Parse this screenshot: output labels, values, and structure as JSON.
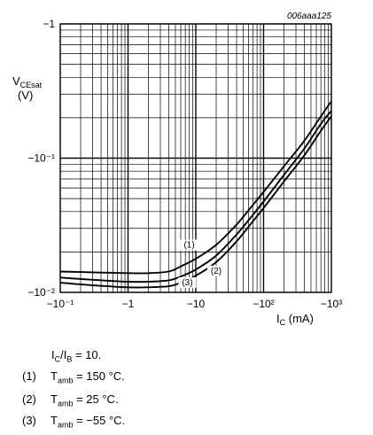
{
  "chart_data": {
    "type": "line",
    "figure_id": "006aaa125",
    "x_scale": "log",
    "y_scale": "log",
    "xlim": [
      -0.1,
      -1000
    ],
    "ylim": [
      -0.01,
      -1
    ],
    "x_ticks": [
      {
        "value": -0.1,
        "label": "−10⁻¹"
      },
      {
        "value": -1,
        "label": "−1"
      },
      {
        "value": -10,
        "label": "−10"
      },
      {
        "value": -100,
        "label": "−10²"
      },
      {
        "value": -1000,
        "label": "−10³"
      }
    ],
    "y_ticks": [
      {
        "value": -1,
        "label": "−1"
      },
      {
        "value": -0.1,
        "label": "−10⁻¹"
      },
      {
        "value": -0.01,
        "label": "−10⁻²"
      }
    ],
    "ylabel_main": "V",
    "ylabel_sub": "CEsat",
    "ylabel_unit": "(V)",
    "xlabel_main": "I",
    "xlabel_sub": "C",
    "xlabel_unit": " (mA)",
    "grid": true,
    "series": [
      {
        "name": "(1)",
        "x": [
          -0.1,
          -0.3,
          -1,
          -2,
          -4,
          -6,
          -10,
          -20,
          -40,
          -70,
          -100,
          -200,
          -400,
          -700,
          -1000
        ],
        "y": [
          -0.0143,
          -0.0141,
          -0.0139,
          -0.0139,
          -0.0143,
          -0.0156,
          -0.0178,
          -0.0226,
          -0.032,
          -0.045,
          -0.056,
          -0.087,
          -0.135,
          -0.205,
          -0.265
        ]
      },
      {
        "name": "(2)",
        "x": [
          -0.1,
          -0.3,
          -1,
          -2,
          -4,
          -6,
          -10,
          -20,
          -40,
          -70,
          -100,
          -200,
          -400,
          -700,
          -1000
        ],
        "y": [
          -0.0129,
          -0.0124,
          -0.012,
          -0.012,
          -0.0123,
          -0.0131,
          -0.0148,
          -0.0188,
          -0.027,
          -0.038,
          -0.0475,
          -0.075,
          -0.118,
          -0.18,
          -0.225
        ]
      },
      {
        "name": "(3)",
        "x": [
          -0.1,
          -0.3,
          -1,
          -2,
          -4,
          -6,
          -10,
          -20,
          -40,
          -70,
          -100,
          -200,
          -400,
          -700,
          -1000
        ],
        "y": [
          -0.0118,
          -0.0113,
          -0.0109,
          -0.0109,
          -0.0111,
          -0.0118,
          -0.0133,
          -0.0168,
          -0.024,
          -0.034,
          -0.0425,
          -0.067,
          -0.105,
          -0.16,
          -0.205
        ]
      }
    ],
    "series_labels": [
      {
        "text": "(1)",
        "at": [
          -8,
          -0.0215
        ]
      },
      {
        "text": "(2)",
        "at": [
          -20,
          -0.0138
        ]
      },
      {
        "text": "(3)",
        "at": [
          -7.5,
          -0.0113
        ]
      }
    ]
  },
  "notes": {
    "condition": {
      "main": "I",
      "sub1": "C",
      "mid": "/I",
      "sub2": "B",
      "rest": " = 10."
    },
    "items": [
      {
        "num": "(1)",
        "main": "T",
        "sub": "amb",
        "rest": " = 150 °C."
      },
      {
        "num": "(2)",
        "main": "T",
        "sub": "amb",
        "rest": " = 25 °C."
      },
      {
        "num": "(3)",
        "main": "T",
        "sub": "amb",
        "rest": " = −55 °C."
      }
    ]
  }
}
